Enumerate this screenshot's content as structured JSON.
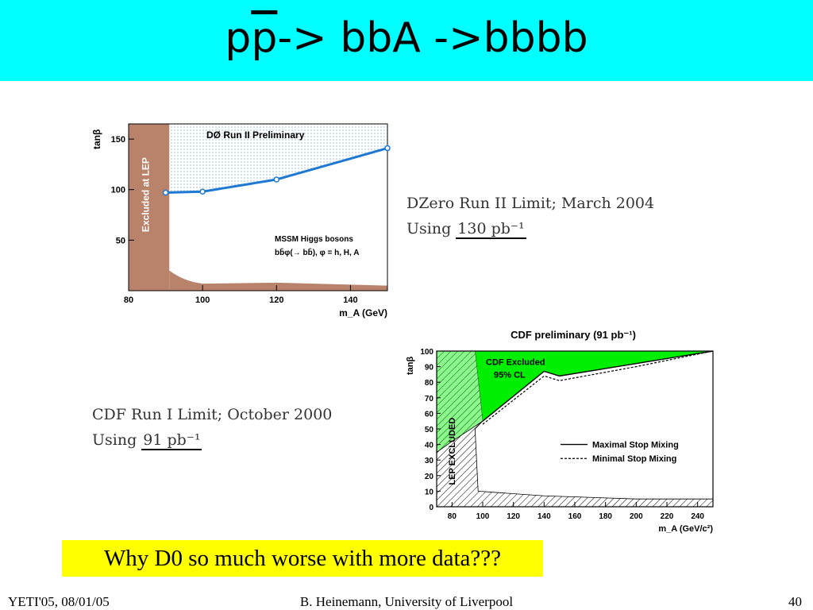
{
  "slide": {
    "title_p": "p",
    "title_pbar": "p",
    "title_rest": "-> bbA ->bbbb",
    "question": "Why D0 so much worse with more data???",
    "footer_left": "YETI'05, 08/01/05",
    "footer_center": "B. Heinemann, University of Liverpool",
    "footer_right": "40"
  },
  "annotations": {
    "dzero_line1": "DZero Run II Limit; March 2004",
    "dzero_using": "Using",
    "dzero_lumi": "130 pb⁻¹",
    "cdf_line1": "CDF Run I Limit; October 2000",
    "cdf_using": "Using",
    "cdf_lumi": "91 pb⁻¹"
  },
  "colors": {
    "title_bg": "#00ffff",
    "highlight": "#ffff00",
    "d0_line": "#1f78d1",
    "lep_band": "#b8836a",
    "cdf_excluded": "#00ee00"
  },
  "chart_data": [
    {
      "type": "line",
      "title": "DØ Run II Preliminary",
      "xlabel": "m_A (GeV)",
      "ylabel": "tanβ",
      "xlim": [
        80,
        150
      ],
      "ylim": [
        0,
        165
      ],
      "xticks": [
        80,
        100,
        120,
        140
      ],
      "yticks": [
        50,
        100,
        150
      ],
      "annotations": [
        "Excluded at LEP",
        "MSSM Higgs bosons",
        "bb̄φ(→ bb̄), φ = h, H, A"
      ],
      "series": [
        {
          "x": [
            90,
            100,
            120,
            150
          ],
          "y": [
            97,
            98,
            110,
            141
          ]
        }
      ]
    },
    {
      "type": "line",
      "title": "CDF preliminary (91 pb⁻¹)",
      "xlabel": "m_A (GeV/c²)",
      "ylabel": "tanβ",
      "xlim": [
        70,
        250
      ],
      "ylim": [
        0,
        100
      ],
      "xticks": [
        80,
        100,
        120,
        140,
        160,
        180,
        200,
        220,
        240
      ],
      "yticks": [
        0,
        10,
        20,
        30,
        40,
        50,
        60,
        70,
        80,
        90,
        100
      ],
      "annotations": [
        "CDF Excluded",
        "95% CL",
        "LEP EXCLUDED"
      ],
      "legend": [
        "Maximal Stop Mixing",
        "Minimal Stop Mixing"
      ],
      "series": [
        {
          "name": "Maximal Stop Mixing",
          "x": [
            100,
            140,
            150,
            200,
            250
          ],
          "y": [
            55,
            87,
            84,
            92,
            100
          ]
        },
        {
          "name": "Minimal Stop Mixing",
          "x": [
            100,
            140,
            150,
            200,
            250
          ],
          "y": [
            53,
            84,
            81,
            90,
            100
          ]
        }
      ]
    }
  ]
}
